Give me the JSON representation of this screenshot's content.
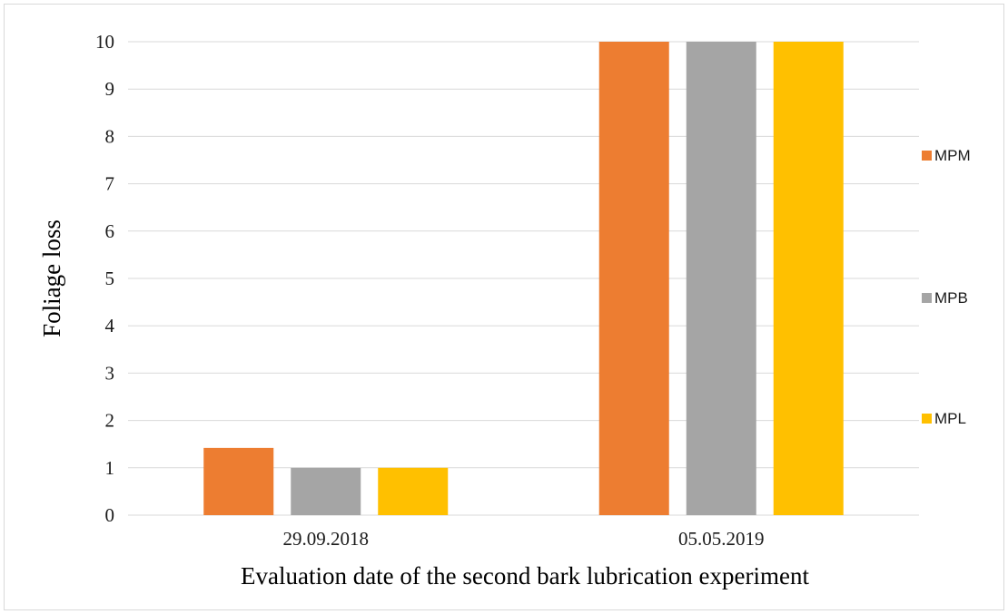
{
  "chart_data": {
    "type": "bar",
    "title": "",
    "xlabel": "Evaluation date of the second bark lubrication experiment",
    "ylabel": "Foliage loss",
    "categories": [
      "29.09.2018",
      "05.05.2019"
    ],
    "series": [
      {
        "name": "MPM",
        "values": [
          1.42,
          10
        ],
        "color": "#ED7D31"
      },
      {
        "name": "MPB",
        "values": [
          1,
          10
        ],
        "color": "#A5A5A5"
      },
      {
        "name": "MPL",
        "values": [
          1,
          10
        ],
        "color": "#FFC000"
      }
    ],
    "ylim": [
      0,
      10
    ],
    "yticks": [
      "0",
      "1",
      "2",
      "3",
      "4",
      "5",
      "6",
      "7",
      "8",
      "9",
      "10"
    ],
    "grid": "horizontal",
    "legend_position": "right",
    "gridline_color": "#D9D9D9"
  }
}
